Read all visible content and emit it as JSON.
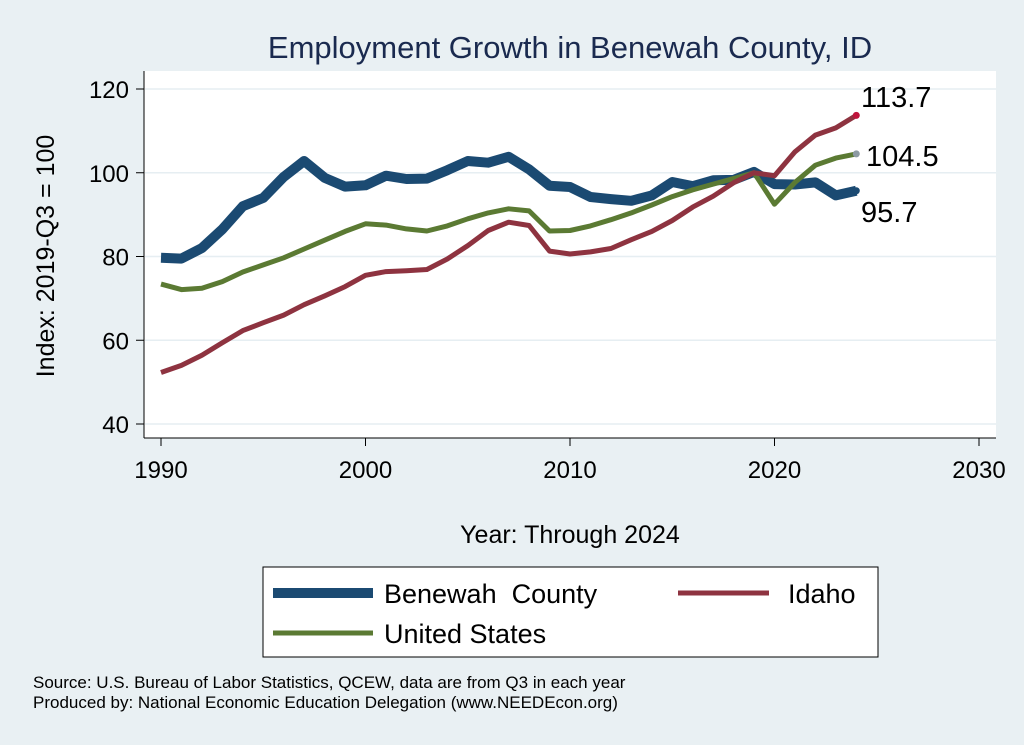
{
  "chart_data": {
    "type": "line",
    "title": "Employment Growth in Benewah County, ID",
    "xlabel": "Year: Through 2024",
    "ylabel": "Index: 2019-Q3 = 100",
    "xlim": [
      1990,
      2030
    ],
    "ylim": [
      40,
      120
    ],
    "xticks": [
      1990,
      2000,
      2010,
      2020,
      2030
    ],
    "yticks": [
      40,
      60,
      80,
      100,
      120
    ],
    "x": [
      1990,
      1991,
      1992,
      1993,
      1994,
      1995,
      1996,
      1997,
      1998,
      1999,
      2000,
      2001,
      2002,
      2003,
      2004,
      2005,
      2006,
      2007,
      2008,
      2009,
      2010,
      2011,
      2012,
      2013,
      2014,
      2015,
      2016,
      2017,
      2018,
      2019,
      2020,
      2021,
      2022,
      2023,
      2024
    ],
    "series": [
      {
        "name": "Benewah  County",
        "color": "#1b4a72",
        "values": [
          79.7,
          79.5,
          82.0,
          86.5,
          92.0,
          94.0,
          99.0,
          102.8,
          98.8,
          96.7,
          97.0,
          99.3,
          98.5,
          98.6,
          100.6,
          102.8,
          102.4,
          103.8,
          100.8,
          96.9,
          96.6,
          94.2,
          93.7,
          93.3,
          94.6,
          97.8,
          96.8,
          98.2,
          98.3,
          100.2,
          97.3,
          97.2,
          97.7,
          94.6,
          95.7
        ],
        "end_label": "95.7"
      },
      {
        "name": "Idaho",
        "color": "#8e3340",
        "values": [
          52.3,
          54.0,
          56.4,
          59.4,
          62.3,
          64.2,
          66.0,
          68.5,
          70.6,
          72.8,
          75.5,
          76.4,
          76.6,
          76.9,
          79.4,
          82.6,
          86.2,
          88.2,
          87.4,
          81.3,
          80.6,
          81.1,
          81.9,
          84.0,
          86.0,
          88.6,
          91.8,
          94.4,
          97.6,
          100.0,
          99.3,
          105.0,
          109.0,
          110.7,
          113.7
        ],
        "end_label": "113.7"
      },
      {
        "name": "United States",
        "color": "#5b7a33",
        "values": [
          73.4,
          72.1,
          72.4,
          74.0,
          76.3,
          78.0,
          79.7,
          81.8,
          83.9,
          86.0,
          87.8,
          87.5,
          86.6,
          86.1,
          87.3,
          89.0,
          90.4,
          91.4,
          90.9,
          86.1,
          86.2,
          87.3,
          88.8,
          90.4,
          92.3,
          94.3,
          95.9,
          97.3,
          98.6,
          100.0,
          92.5,
          97.7,
          101.8,
          103.5,
          104.5
        ],
        "end_label": "104.5"
      }
    ],
    "legend": [
      "Benewah  County",
      "Idaho",
      "United States"
    ]
  },
  "source": {
    "line1": "Source: U.S. Bureau of Labor Statistics, QCEW, data are from Q3 in each year",
    "line2": "Produced by: National Economic Education Delegation (www.NEEDEcon.org)"
  }
}
